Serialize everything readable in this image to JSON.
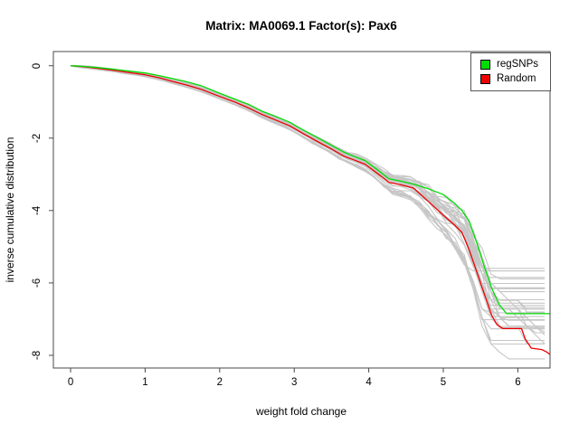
{
  "title": "Matrix: MA0069.1 Factor(s): Pax6",
  "axes": {
    "xlabel": "weight fold change",
    "ylabel": "inverse cumulative distribution"
  },
  "legend": {
    "items": [
      {
        "label": "regSNPs",
        "color": "#00dd00"
      },
      {
        "label": "Random",
        "color": "#ee0000"
      }
    ]
  },
  "chart_data": {
    "type": "line",
    "title": "Matrix: MA0069.1 Factor(s): Pax6",
    "xlabel": "weight fold change",
    "ylabel": "inverse cumulative distribution",
    "grid": false,
    "legend_position": "top-right",
    "xticks": [
      0,
      1,
      2,
      3,
      4,
      5,
      6
    ],
    "yticks": [
      0,
      -2,
      -4,
      -6,
      -8
    ],
    "xlim": [
      0,
      6.43
    ],
    "ylim": [
      -8,
      0
    ],
    "x_view": [
      -0.231,
      6.432
    ],
    "y_view": [
      -8.35,
      0.392
    ],
    "x_end": 6.43,
    "axis_color": "#4a4a4a",
    "series": [
      {
        "name": "regSNPs",
        "color": "#00dd00",
        "points": [
          [
            0,
            0
          ],
          [
            0.18,
            -0.02
          ],
          [
            0.35,
            -0.05
          ],
          [
            0.55,
            -0.09
          ],
          [
            0.75,
            -0.14
          ],
          [
            1.0,
            -0.2
          ],
          [
            1.2,
            -0.28
          ],
          [
            1.36,
            -0.35
          ],
          [
            1.55,
            -0.44
          ],
          [
            1.75,
            -0.55
          ],
          [
            2.0,
            -0.76
          ],
          [
            2.2,
            -0.92
          ],
          [
            2.4,
            -1.08
          ],
          [
            2.57,
            -1.26
          ],
          [
            2.75,
            -1.4
          ],
          [
            2.94,
            -1.56
          ],
          [
            3.1,
            -1.75
          ],
          [
            3.3,
            -1.97
          ],
          [
            3.5,
            -2.2
          ],
          [
            3.67,
            -2.39
          ],
          [
            3.8,
            -2.5
          ],
          [
            3.95,
            -2.62
          ],
          [
            4.1,
            -2.85
          ],
          [
            4.27,
            -3.12
          ],
          [
            4.45,
            -3.2
          ],
          [
            4.6,
            -3.27
          ],
          [
            4.8,
            -3.4
          ],
          [
            5.0,
            -3.56
          ],
          [
            5.15,
            -3.8
          ],
          [
            5.25,
            -4.0
          ],
          [
            5.35,
            -4.3
          ],
          [
            5.45,
            -4.9
          ],
          [
            5.55,
            -5.55
          ],
          [
            5.65,
            -6.15
          ],
          [
            5.75,
            -6.6
          ],
          [
            5.85,
            -6.85
          ],
          [
            6.43,
            -6.85
          ]
        ]
      },
      {
        "name": "Random",
        "color": "#ee0000",
        "points": [
          [
            0,
            0
          ],
          [
            0.18,
            -0.03
          ],
          [
            0.35,
            -0.07
          ],
          [
            0.55,
            -0.12
          ],
          [
            0.75,
            -0.18
          ],
          [
            1.0,
            -0.25
          ],
          [
            1.2,
            -0.34
          ],
          [
            1.36,
            -0.43
          ],
          [
            1.55,
            -0.53
          ],
          [
            1.75,
            -0.65
          ],
          [
            2.0,
            -0.85
          ],
          [
            2.2,
            -1.0
          ],
          [
            2.4,
            -1.18
          ],
          [
            2.57,
            -1.35
          ],
          [
            2.75,
            -1.5
          ],
          [
            2.94,
            -1.66
          ],
          [
            3.1,
            -1.85
          ],
          [
            3.3,
            -2.08
          ],
          [
            3.5,
            -2.3
          ],
          [
            3.67,
            -2.5
          ],
          [
            3.8,
            -2.6
          ],
          [
            3.95,
            -2.72
          ],
          [
            4.1,
            -2.95
          ],
          [
            4.27,
            -3.22
          ],
          [
            4.45,
            -3.3
          ],
          [
            4.6,
            -3.38
          ],
          [
            4.8,
            -3.75
          ],
          [
            5.0,
            -4.13
          ],
          [
            5.15,
            -4.4
          ],
          [
            5.25,
            -4.6
          ],
          [
            5.35,
            -5.1
          ],
          [
            5.45,
            -5.7
          ],
          [
            5.55,
            -6.3
          ],
          [
            5.65,
            -6.9
          ],
          [
            5.72,
            -7.15
          ],
          [
            5.8,
            -7.26
          ],
          [
            6.05,
            -7.26
          ],
          [
            6.1,
            -7.55
          ],
          [
            6.18,
            -7.8
          ],
          [
            6.32,
            -7.84
          ],
          [
            6.38,
            -7.9
          ],
          [
            6.43,
            -7.97
          ]
        ]
      }
    ],
    "ensemble": {
      "name": "random-permutation-curves",
      "color": "#c6c6c6",
      "count": 34,
      "seed": 7,
      "x_step": 0.12,
      "step_quantize_after_x": 5.5,
      "step_size": 0.24,
      "end_level_range": [
        -5.5,
        -8.2
      ],
      "spread_profile": [
        [
          0,
          0.025
        ],
        [
          1,
          0.05
        ],
        [
          2,
          0.07
        ],
        [
          3,
          0.1
        ],
        [
          3.8,
          0.16
        ],
        [
          4.4,
          0.28
        ],
        [
          4.9,
          0.45
        ],
        [
          5.2,
          0.65
        ],
        [
          5.5,
          1.0
        ],
        [
          6.43,
          1.35
        ]
      ]
    }
  }
}
